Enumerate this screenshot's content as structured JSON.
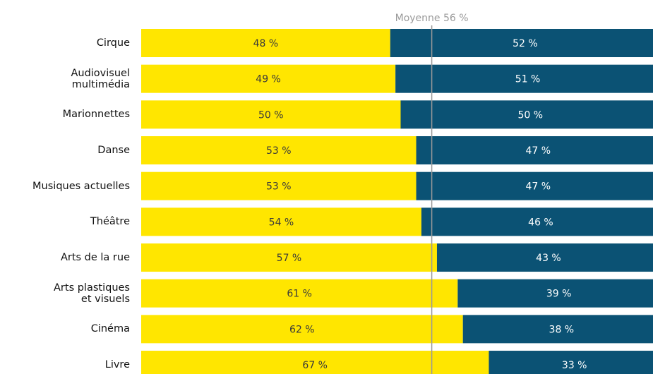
{
  "chart_data": {
    "type": "stacked_bar_horizontal",
    "categories": [
      "Cirque",
      "Audiovisuel\nmultimédia",
      "Marionnettes",
      "Danse",
      "Musiques actuelles",
      "Théâtre",
      "Arts de la rue",
      "Arts plastiques\net visuels",
      "Cinéma",
      "Livre"
    ],
    "series": [
      {
        "color": "#ffe600",
        "label_color": "#3a3a3a",
        "values": [
          48,
          49,
          50,
          53,
          53,
          54,
          57,
          61,
          62,
          67
        ],
        "value_labels": [
          "48 %",
          "49 %",
          "50 %",
          "53 %",
          "53 %",
          "54 %",
          "57 %",
          "61 %",
          "62 %",
          "67 %"
        ]
      },
      {
        "color": "#0b5274",
        "label_color": "#ffffff",
        "values": [
          52,
          51,
          50,
          47,
          47,
          46,
          43,
          39,
          38,
          33
        ],
        "value_labels": [
          "52 %",
          "51 %",
          "50 %",
          "47 %",
          "47 %",
          "46 %",
          "43 %",
          "39 %",
          "38 %",
          "33 %"
        ]
      }
    ],
    "xlim": [
      0,
      100
    ],
    "annotations": [
      {
        "text": "Moyenne 56 %",
        "value": 56
      }
    ]
  }
}
